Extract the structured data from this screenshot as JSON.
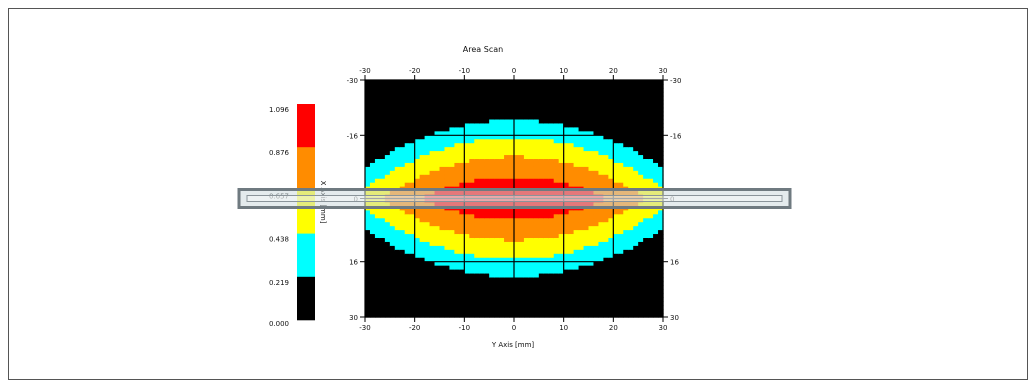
{
  "chart_data": {
    "type": "heatmap",
    "title": "Area Scan",
    "xlabel": "Y Axis [mm]",
    "ylabel": "X Axis [mm]",
    "xlim": [
      -30,
      30
    ],
    "ylim": [
      -30,
      30
    ],
    "x_ticks": [
      "-30",
      "-20",
      "-10",
      "0",
      "10",
      "20",
      "30"
    ],
    "y_ticks": [
      "-30",
      "-16",
      "0",
      "16",
      "30"
    ],
    "colorbar": {
      "labels": [
        "1.096",
        "0.876",
        "0.657",
        "0.438",
        "0.219",
        "0.000"
      ],
      "levels": [
        {
          "min": 0.0,
          "max": 0.219,
          "color": "#000000"
        },
        {
          "min": 0.219,
          "max": 0.438,
          "color": "#00ffff"
        },
        {
          "min": 0.438,
          "max": 0.657,
          "color": "#ffff00"
        },
        {
          "min": 0.657,
          "max": 0.876,
          "color": "#ff8c00"
        },
        {
          "min": 0.876,
          "max": 1.096,
          "color": "#ff0000"
        }
      ]
    },
    "field": {
      "peak": 1.096,
      "center_x": 0,
      "center_y": 0,
      "spread_y_mm": 30,
      "spread_x_mm": 30
    },
    "grid": true,
    "overlay": "device-outline"
  }
}
